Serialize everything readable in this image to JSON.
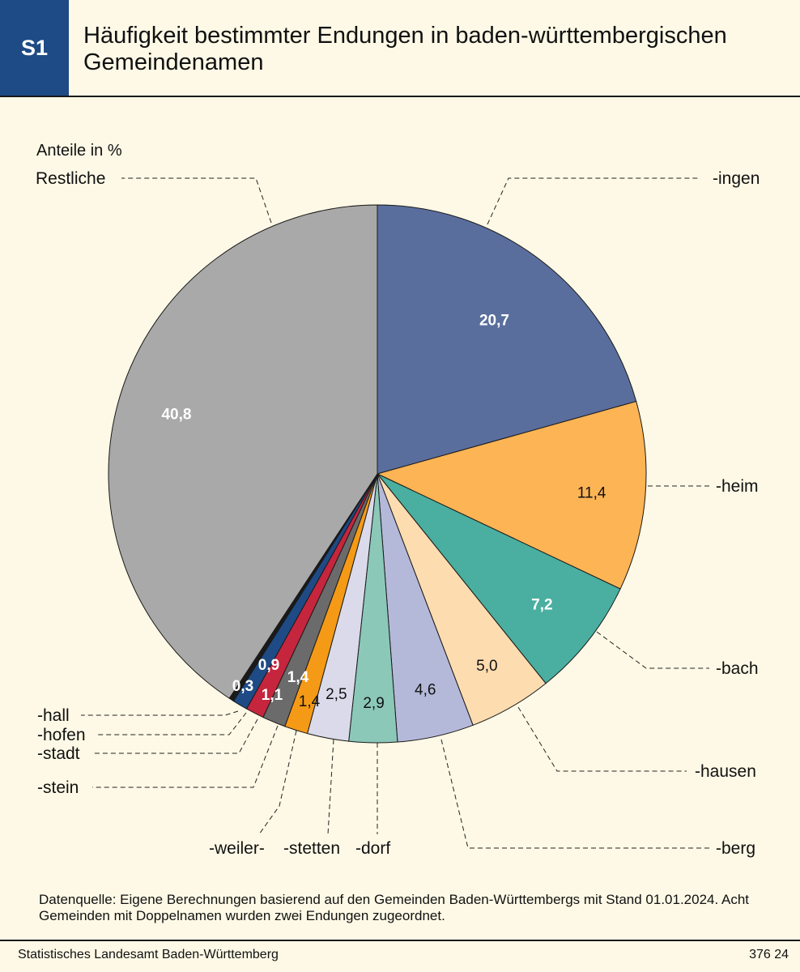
{
  "header": {
    "badge": "S1",
    "title": "Häufigkeit bestimmter Endungen in baden-württembergischen Gemeindenamen"
  },
  "chart_data": {
    "type": "pie",
    "unit_label": "Anteile in %",
    "start_angle_deg": 0,
    "direction": "clockwise",
    "slices": [
      {
        "name": "-ingen",
        "value": 20.7,
        "label": "20,7",
        "color": "#5a6e9e",
        "label_color": "#ffffff"
      },
      {
        "name": "-heim",
        "value": 11.4,
        "label": "11,4",
        "color": "#fdb455",
        "label_color": "#111111"
      },
      {
        "name": "-bach",
        "value": 7.2,
        "label": "7,2",
        "color": "#4aafa0",
        "label_color": "#ffffff"
      },
      {
        "name": "-hausen",
        "value": 5.0,
        "label": "5,0",
        "color": "#fddcb0",
        "label_color": "#111111"
      },
      {
        "name": "-berg",
        "value": 4.6,
        "label": "4,6",
        "color": "#b5b9d9",
        "label_color": "#111111"
      },
      {
        "name": "-dorf",
        "value": 2.9,
        "label": "2,9",
        "color": "#8bc8b8",
        "label_color": "#111111"
      },
      {
        "name": "-stetten",
        "value": 2.5,
        "label": "2,5",
        "color": "#dadaea",
        "label_color": "#111111"
      },
      {
        "name": "-weiler-",
        "value": 1.4,
        "label": "1,4",
        "color": "#f59a16",
        "label_color": "#111111"
      },
      {
        "name": "-stein",
        "value": 1.4,
        "label": "1,4",
        "color": "#6b6b6b",
        "label_color": "#ffffff"
      },
      {
        "name": "-stadt",
        "value": 1.1,
        "label": "1,1",
        "color": "#c5263d",
        "label_color": "#ffffff"
      },
      {
        "name": "-hofen",
        "value": 0.9,
        "label": "0,9",
        "color": "#1e4b86",
        "label_color": "#ffffff"
      },
      {
        "name": "-hall",
        "value": 0.3,
        "label": "0,3",
        "color": "#1a1a1a",
        "label_color": "#ffffff"
      },
      {
        "name": "Restliche",
        "value": 40.8,
        "label": "40,8",
        "color": "#a9a9a9",
        "label_color": "#ffffff"
      }
    ]
  },
  "source_text": "Datenquelle: Eigene Berechnungen basierend auf den Gemeinden Baden-Württembergs mit Stand 01.01.2024. Acht Gemeinden mit Doppelnamen wurden zwei Endungen zugeordnet.",
  "footer": {
    "publisher": "Statistisches Landesamt Baden-Württemberg",
    "code": "376 24"
  }
}
